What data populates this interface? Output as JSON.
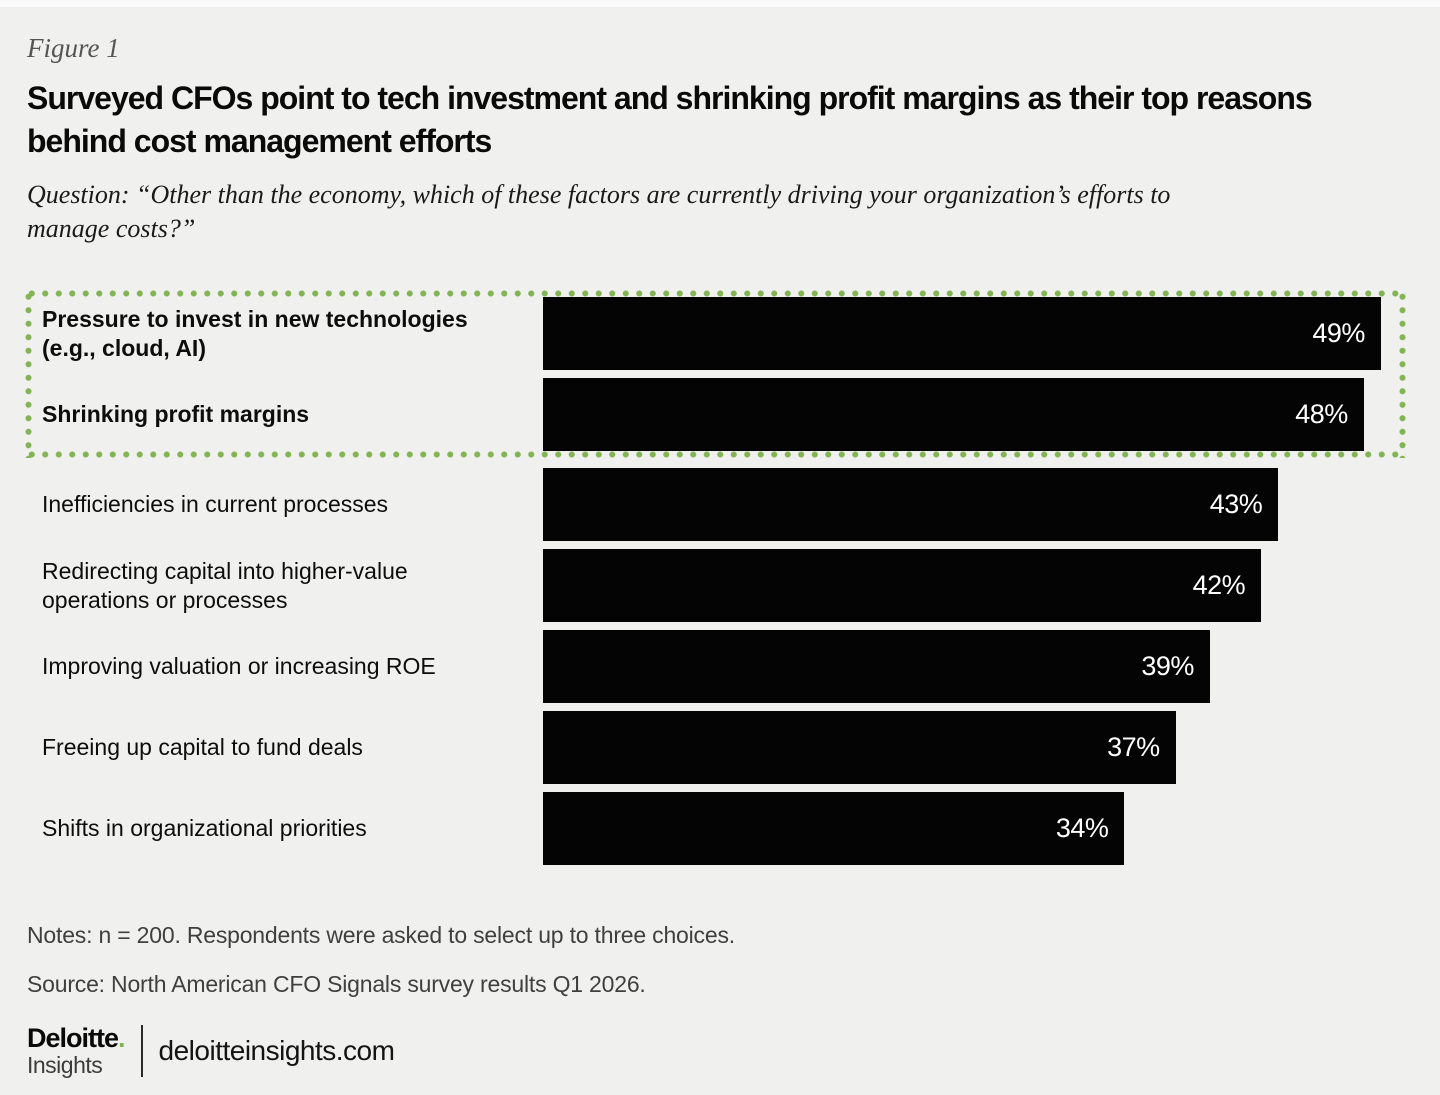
{
  "figure_label": "Figure 1",
  "title": {
    "line1": "Surveyed CFOs point to tech investment and shrinking profit margins as their top reasons",
    "line2": "behind cost management efforts"
  },
  "question": {
    "line1": "Question: “Other than the economy, which of these factors are currently driving your organization’s efforts to",
    "line2": "manage costs?”"
  },
  "notes": "Notes: n = 200. Respondents were asked to select up to three choices.",
  "source": "Source: North American CFO Signals survey results Q1 2026.",
  "footer": {
    "brand_name": "Deloitte",
    "brand_dot": ".",
    "brand_sub": "Insights",
    "site": "deloitteinsights.com"
  },
  "colors": {
    "background": "#f0f0ee",
    "bar": "#040404",
    "highlight_box_green": "#82b455",
    "value_label_text": "#ffffff"
  },
  "chart_data": {
    "type": "bar",
    "orientation": "horizontal",
    "title": "Surveyed CFOs point to tech investment and shrinking profit margins as their top reasons behind cost management efforts",
    "categories": [
      "Pressure to invest in new technologies (e.g., cloud, AI)",
      "Shrinking profit margins",
      "Inefficiencies in current processes",
      "Redirecting capital into higher-value operations or processes",
      "Improving valuation or increasing ROE",
      "Freeing up capital to fund deals",
      "Shifts in organizational priorities"
    ],
    "values": [
      49,
      48,
      43,
      42,
      39,
      37,
      34
    ],
    "value_labels": [
      "49%",
      "48%",
      "43%",
      "42%",
      "39%",
      "37%",
      "34%"
    ],
    "unit": "percent",
    "xlim": [
      0,
      50
    ],
    "grid": false,
    "legend": false,
    "axes_shown": false,
    "highlight": {
      "style": "green-dotted-outline-box",
      "applies_to_first_n_bars": 2
    }
  }
}
